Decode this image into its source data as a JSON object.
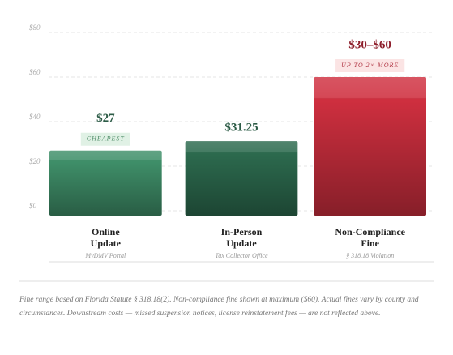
{
  "chart_data": {
    "type": "bar",
    "categories": [
      [
        "Online",
        "Update"
      ],
      [
        "In-Person",
        "Update"
      ],
      [
        "Non-Compliance",
        "Fine"
      ]
    ],
    "sublabels": [
      "MyDMV Portal",
      "Tax Collector Office",
      "§ 318.18 Violation"
    ],
    "values": [
      27,
      31.25,
      60
    ],
    "value_labels": [
      "$27",
      "$31.25",
      "$30–$60"
    ],
    "badges": [
      "CHEAPEST",
      null,
      "UP TO 2× MORE"
    ],
    "colors": [
      "#3f8f69",
      "#2c6a4e",
      "#cf2f3f"
    ],
    "ylim": [
      0,
      80
    ],
    "yticks": [
      {
        "value": 0,
        "label": "$0"
      },
      {
        "value": 20,
        "label": "$20"
      },
      {
        "value": 40,
        "label": "$40"
      },
      {
        "value": 60,
        "label": "$60"
      },
      {
        "value": 80,
        "label": "$80"
      }
    ],
    "grid": true,
    "footnote": "Fine range based on Florida Statute § 318.18(2). Non-compliance fine shown at maximum ($60). Actual fines vary by county and circumstances. Downstream costs — missed suspension notices, license reinstatement fees — are not reflected above."
  }
}
